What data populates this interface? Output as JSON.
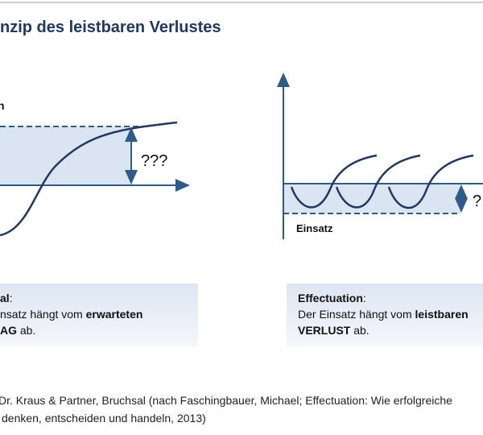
{
  "header": {
    "title": "nzip des leistbaren Verlustes"
  },
  "left_diagram": {
    "axis_label": "n",
    "gap_label": "???"
  },
  "right_diagram": {
    "gap_label": "?",
    "stake_label": "Einsatz"
  },
  "left_box": {
    "heading": {
      "bold": "al",
      "rest": ":"
    },
    "line1": {
      "text": "nsatz hängt vom ",
      "bold": "erwarteten"
    },
    "line2": {
      "bold": "AG",
      "text": " ab."
    }
  },
  "right_box": {
    "heading": {
      "bold": "Effectuation",
      "rest": ":"
    },
    "line1": {
      "text": "Der Einsatz hängt vom ",
      "bold": "leistbaren"
    },
    "line2": {
      "bold": "VERLUST",
      "text": " ab."
    }
  },
  "source": {
    "line1": "Dr. Kraus & Partner, Bruchsal (nach Faschingbauer, Michael; Effectuation: Wie erfolgreiche",
    "line2": "denken, entscheiden und handeln, 2013)"
  }
}
